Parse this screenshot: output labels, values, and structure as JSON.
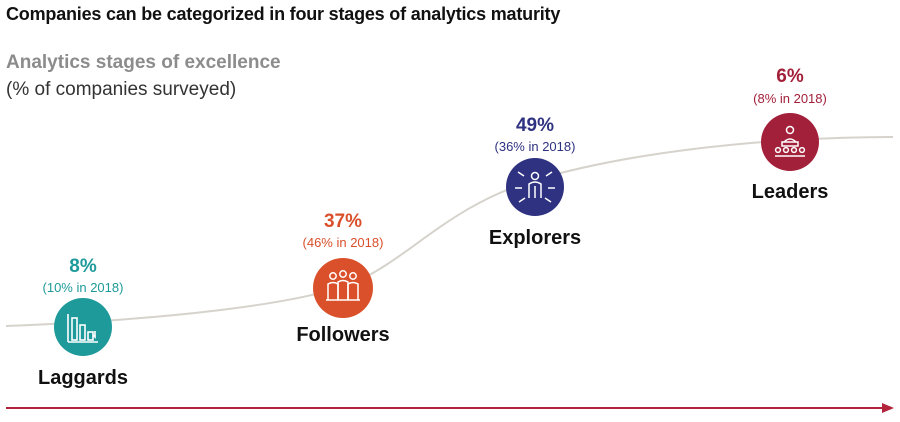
{
  "title": "Companies can be categorized in four stages of analytics maturity",
  "subtitle": "Analytics stages of excellence",
  "unit_note": "(% of companies surveyed)",
  "colors": {
    "curve": "#d6d3cc",
    "axis_arrow": "#b1243c"
  },
  "stages": [
    {
      "name": "Laggards",
      "percent": "8%",
      "previous": "(10% in 2018)",
      "color": "#1f9a9b",
      "icon": "bar-chart-down-icon"
    },
    {
      "name": "Followers",
      "percent": "37%",
      "previous": "(46% in 2018)",
      "color": "#d9502b",
      "icon": "group-of-people-icon"
    },
    {
      "name": "Explorers",
      "percent": "49%",
      "previous": "(36% in 2018)",
      "color": "#2f3280",
      "icon": "person-with-arrows-icon"
    },
    {
      "name": "Leaders",
      "percent": "6%",
      "previous": "(8% in 2018)",
      "color": "#a3203a",
      "icon": "leader-at-podium-icon"
    }
  ]
}
